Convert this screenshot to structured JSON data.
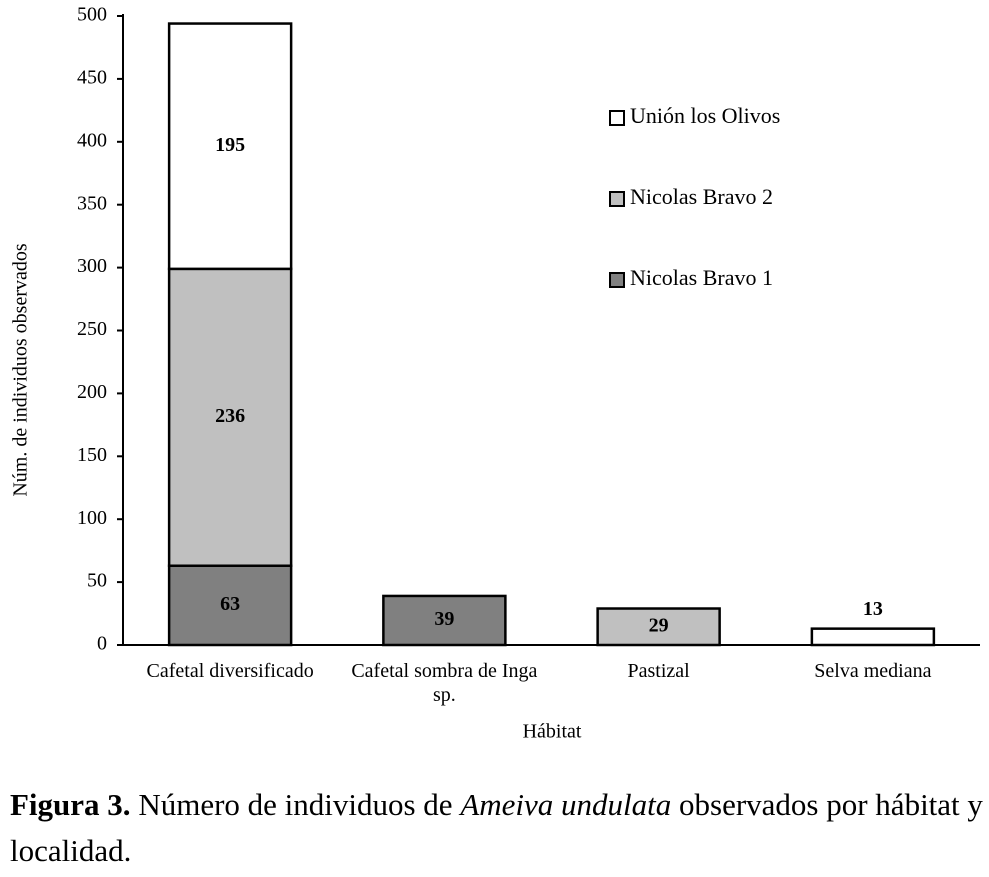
{
  "chart_data": {
    "type": "stacked_bar",
    "y_label": "Núm. de individuos observados",
    "x_label": "Hábitat",
    "categories": [
      "Cafetal diversificado",
      "Cafetal sombra de Inga sp.",
      "Pastizal",
      "Selva mediana"
    ],
    "series": [
      {
        "name": "Nicolas Bravo 1",
        "color": "#808080",
        "values": [
          63,
          39,
          null,
          null
        ]
      },
      {
        "name": "Nicolas Bravo 2",
        "color": "#c0c0c0",
        "values": [
          236,
          null,
          29,
          null
        ]
      },
      {
        "name": "Unión los Olivos",
        "color": "#ffffff",
        "values": [
          195,
          null,
          null,
          13
        ]
      }
    ],
    "ylim": [
      0,
      500
    ],
    "yticks": [
      0,
      50,
      100,
      150,
      200,
      250,
      300,
      350,
      400,
      450,
      500
    ],
    "legend": "upper right"
  },
  "caption": {
    "label": "Figura 3.",
    "text_before": "Número de individuos de",
    "species": "Ameiva undulata",
    "text_after": "observados por hábitat y localidad."
  }
}
